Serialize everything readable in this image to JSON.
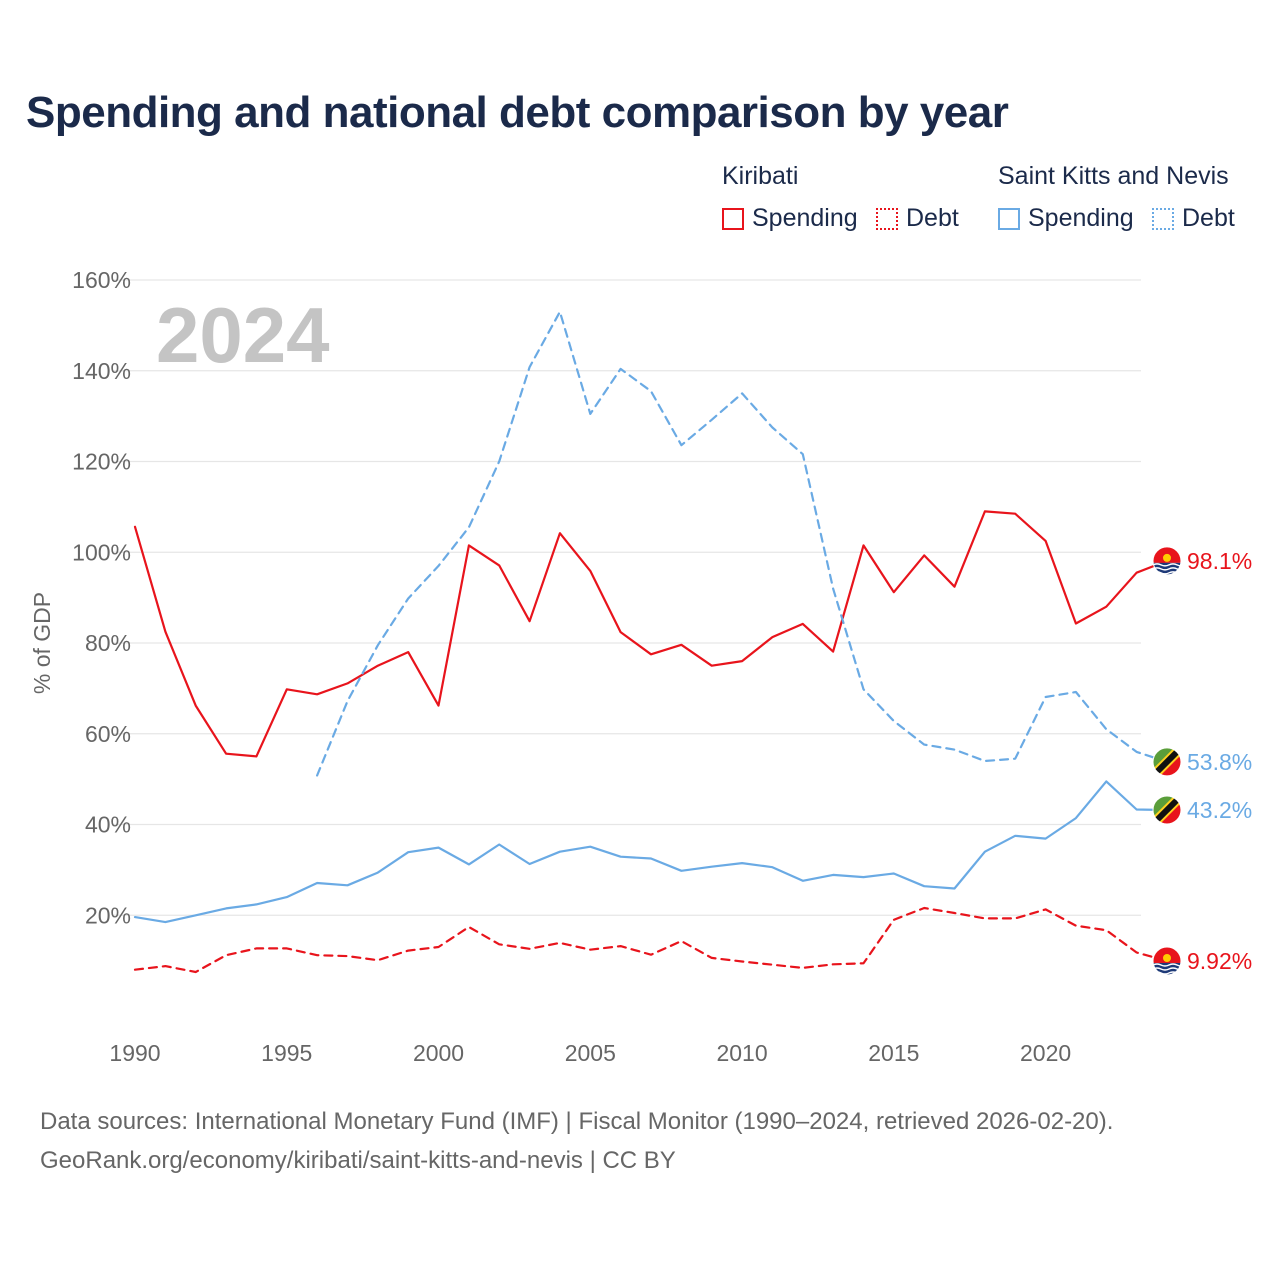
{
  "title": "Spending and national debt comparison by year",
  "legend": {
    "groups": [
      {
        "country": "Kiribati",
        "color": "#e8141c",
        "items": [
          {
            "label": "Spending",
            "style": "solid"
          },
          {
            "label": "Debt",
            "style": "dotted"
          }
        ]
      },
      {
        "country": "Saint Kitts and Nevis",
        "color": "#6aaae4",
        "items": [
          {
            "label": "Spending",
            "style": "solid"
          },
          {
            "label": "Debt",
            "style": "dotted"
          }
        ]
      }
    ]
  },
  "year_watermark": "2024",
  "footer": {
    "line1": "Data sources: International Monetary Fund (IMF) | Fiscal Monitor (1990–2024, retrieved 2026-02-20).",
    "line2": "GeoRank.org/economy/kiribati/saint-kitts-and-nevis | CC BY"
  },
  "chart_data": {
    "type": "line",
    "title": "Spending and national debt comparison by year",
    "xlabel": "",
    "ylabel": "% of GDP",
    "xlim": [
      1990,
      2024
    ],
    "ylim": [
      0,
      160
    ],
    "x_ticks": [
      1990,
      1995,
      2000,
      2005,
      2010,
      2015,
      2020
    ],
    "x_tick_labels": [
      "1990",
      "1995",
      "2000",
      "2005",
      "2010",
      "2015",
      "2020"
    ],
    "y_ticks": [
      20,
      40,
      60,
      80,
      100,
      120,
      140,
      160
    ],
    "y_tick_labels": [
      "20%",
      "40%",
      "60%",
      "80%",
      "100%",
      "120%",
      "140%",
      "160%"
    ],
    "grid": true,
    "series": [
      {
        "name": "Kiribati Spending",
        "color": "#e8141c",
        "dash": "solid",
        "start_year": 1990,
        "end_label": "98.1%",
        "values": [
          105.6,
          82.5,
          66.2,
          55.6,
          55.0,
          69.8,
          68.7,
          71.1,
          75.0,
          78.0,
          66.2,
          101.5,
          97.1,
          84.8,
          104.2,
          95.9,
          82.4,
          77.5,
          79.6,
          75.0,
          76.0,
          81.3,
          84.2,
          78.1,
          101.5,
          91.2,
          99.3,
          92.4,
          109.0,
          108.5,
          102.5,
          84.3,
          88.0,
          95.5,
          98.1
        ]
      },
      {
        "name": "Kiribati Debt",
        "color": "#e8141c",
        "dash": "dashed",
        "start_year": 1990,
        "end_label": "9.92%",
        "values": [
          8.0,
          8.8,
          7.5,
          11.2,
          12.7,
          12.7,
          11.2,
          11.0,
          10.1,
          12.2,
          13.0,
          17.4,
          13.6,
          12.6,
          13.9,
          12.4,
          13.2,
          11.3,
          14.3,
          10.6,
          9.8,
          9.1,
          8.4,
          9.2,
          9.4,
          19.0,
          21.6,
          20.5,
          19.3,
          19.3,
          21.3,
          17.7,
          16.7,
          11.8,
          9.92
        ]
      },
      {
        "name": "Saint Kitts and Nevis Spending",
        "color": "#6aaae4",
        "dash": "solid",
        "start_year": 1990,
        "end_label": "43.2%",
        "values": [
          19.6,
          18.5,
          20.0,
          21.5,
          22.4,
          24.0,
          27.1,
          26.6,
          29.4,
          33.9,
          34.9,
          31.2,
          35.6,
          31.3,
          34.0,
          35.1,
          32.9,
          32.5,
          29.8,
          30.7,
          31.5,
          30.6,
          27.6,
          28.9,
          28.4,
          29.2,
          26.4,
          25.9,
          34.0,
          37.5,
          36.9,
          41.4,
          49.5,
          43.3,
          43.2
        ]
      },
      {
        "name": "Saint Kitts and Nevis Debt",
        "color": "#6aaae4",
        "dash": "dashed",
        "start_year": 1996,
        "end_label": "53.8%",
        "values": [
          50.8,
          67.2,
          79.5,
          89.8,
          97.0,
          105.5,
          120.0,
          140.8,
          153.0,
          130.5,
          140.4,
          135.5,
          123.6,
          129.2,
          135.0,
          127.5,
          121.6,
          92.0,
          69.8,
          62.8,
          57.6,
          56.5,
          54.0,
          54.5,
          68.1,
          69.2,
          61.0,
          56.0,
          53.8
        ]
      }
    ]
  }
}
